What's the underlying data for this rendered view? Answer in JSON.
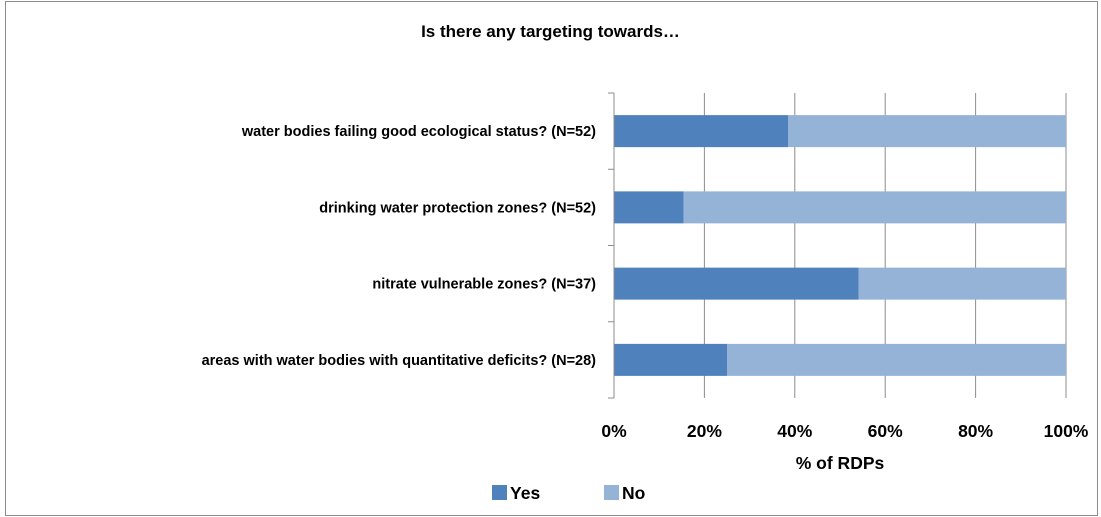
{
  "chart_data": {
    "type": "bar",
    "orientation": "horizontal",
    "stacked": true,
    "title": "Is there any targeting towards…",
    "xlabel": "% of RDPs",
    "ylabel": "",
    "xlim": [
      0,
      100
    ],
    "x_ticks": [
      "0%",
      "20%",
      "40%",
      "60%",
      "80%",
      "100%"
    ],
    "grid": true,
    "legend_position": "bottom",
    "categories": [
      "water bodies failing good ecological status? (N=52)",
      "drinking water protection zones?  (N=52)",
      "nitrate vulnerable zones? (N=37)",
      "areas with water bodies with quantitative deficits? (N=28)"
    ],
    "series": [
      {
        "name": "Yes",
        "color": "#4f81bd",
        "values": [
          38.5,
          15.4,
          54.1,
          25.0
        ]
      },
      {
        "name": "No",
        "color": "#95b3d7",
        "values": [
          61.5,
          84.6,
          45.9,
          75.0
        ]
      }
    ]
  }
}
